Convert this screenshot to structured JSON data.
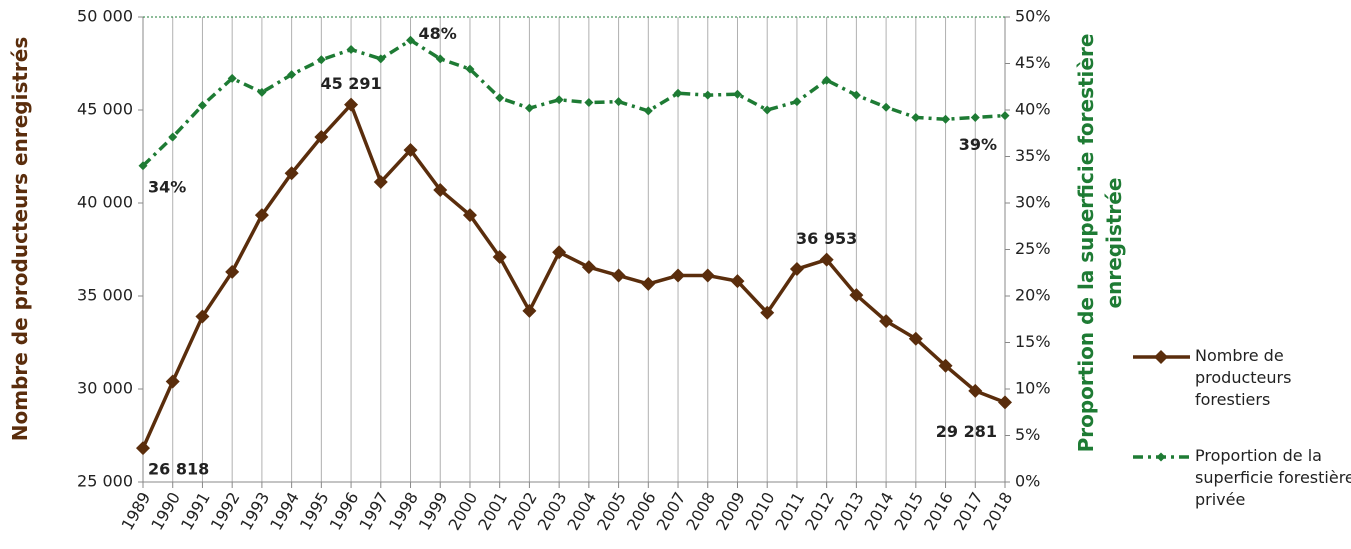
{
  "chart_data": {
    "type": "line",
    "categories": [
      "1989",
      "1990",
      "1991",
      "1992",
      "1993",
      "1994",
      "1995",
      "1996",
      "1997",
      "1998",
      "1999",
      "2000",
      "2001",
      "2002",
      "2003",
      "2004",
      "2005",
      "2006",
      "2007",
      "2008",
      "2009",
      "2010",
      "2011",
      "2012",
      "2013",
      "2014",
      "2015",
      "2016",
      "2017",
      "2018"
    ],
    "y_label": "Nombre de producteurs enregistrés",
    "y2_label": "Proportion de la superficie forestière enregistrée",
    "ylim": [
      25000,
      50000
    ],
    "yticks": [
      {
        "value": 25000,
        "label": "25 000"
      },
      {
        "value": 30000,
        "label": "30 000"
      },
      {
        "value": 35000,
        "label": "35 000"
      },
      {
        "value": 40000,
        "label": "40 000"
      },
      {
        "value": 45000,
        "label": "45 000"
      },
      {
        "value": 50000,
        "label": "50 000"
      }
    ],
    "y2lim": [
      0,
      50
    ],
    "y2ticks": [
      {
        "value": 0,
        "label": "0%"
      },
      {
        "value": 5,
        "label": "5%"
      },
      {
        "value": 10,
        "label": "10%"
      },
      {
        "value": 15,
        "label": "15%"
      },
      {
        "value": 20,
        "label": "20%"
      },
      {
        "value": 25,
        "label": "25%"
      },
      {
        "value": 30,
        "label": "30%"
      },
      {
        "value": 35,
        "label": "35%"
      },
      {
        "value": 40,
        "label": "40%"
      },
      {
        "value": 45,
        "label": "45%"
      },
      {
        "value": 50,
        "label": "50%"
      }
    ],
    "legend": "right",
    "series": [
      {
        "name": "Nombre de producteurs forestiers",
        "color": "#5a2d0c",
        "dash": "solid",
        "values": [
          26818,
          30400,
          33900,
          36300,
          39350,
          41600,
          43550,
          45291,
          41130,
          42850,
          40700,
          39350,
          37100,
          34200,
          37350,
          36550,
          36100,
          35650,
          36100,
          36100,
          35800,
          34100,
          36450,
          36953,
          35050,
          33650,
          32700,
          31250,
          29900,
          29281
        ],
        "value_labels": [
          "26 818",
          null,
          null,
          null,
          null,
          null,
          null,
          "45 291",
          null,
          null,
          null,
          null,
          null,
          null,
          null,
          null,
          null,
          null,
          null,
          null,
          null,
          null,
          null,
          "36 953",
          null,
          null,
          null,
          null,
          null,
          "29 281"
        ]
      },
      {
        "name": "Proportion de la superficie forestière privée",
        "color": "#1e7b34",
        "dash": "dashdot",
        "axis": "y2",
        "values": [
          34,
          37.1,
          40.5,
          43.4,
          41.9,
          43.8,
          45.4,
          46.5,
          45.5,
          47.5,
          45.5,
          44.4,
          41.3,
          40.2,
          41.1,
          40.8,
          40.9,
          39.9,
          41.8,
          41.6,
          41.7,
          40,
          40.9,
          43.2,
          41.6,
          40.3,
          39.2,
          39,
          39.2,
          39.4
        ],
        "value_labels": [
          "34%",
          null,
          null,
          null,
          null,
          null,
          null,
          null,
          null,
          "48%",
          null,
          null,
          null,
          null,
          null,
          null,
          null,
          null,
          null,
          null,
          null,
          null,
          null,
          null,
          null,
          null,
          null,
          null,
          null,
          "39%"
        ]
      }
    ]
  }
}
